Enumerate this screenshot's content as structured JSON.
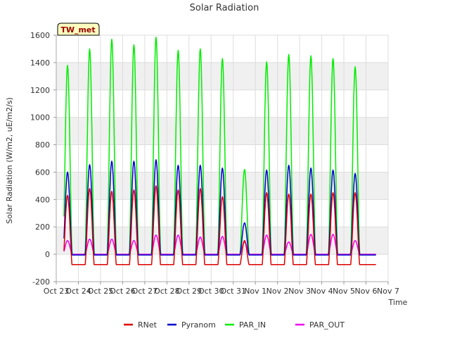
{
  "chart_data": {
    "type": "line",
    "title": "Solar Radiation",
    "xlabel": "Time",
    "ylabel": "Solar Radiation (W/m2, uE/m2/s)",
    "site_label": "TW_met",
    "ylim": [
      -200,
      1600
    ],
    "yticks": [
      -200,
      0,
      200,
      400,
      600,
      800,
      1000,
      1200,
      1400,
      1600
    ],
    "xlim": [
      0,
      15
    ],
    "xticks": [
      "Oct 23",
      "Oct 24",
      "Oct 25",
      "Oct 26",
      "Oct 27",
      "Oct 28",
      "Oct 29",
      "Oct 30",
      "Oct 31",
      "Nov 1",
      "Nov 2",
      "Nov 3",
      "Nov 4",
      "Nov 5",
      "Nov 6",
      "Nov 7"
    ],
    "x_start": 0.35,
    "x_end": 14.45,
    "grid": true,
    "legend_position": "bottom",
    "series": [
      {
        "name": "RNet",
        "color": "#dd0000",
        "night": -75,
        "peaks": [
          430,
          480,
          460,
          470,
          500,
          470,
          480,
          420,
          100,
          450,
          440,
          440,
          450,
          450
        ]
      },
      {
        "name": "Pyranom",
        "color": "#0000cc",
        "night": -5,
        "peaks": [
          600,
          655,
          680,
          680,
          690,
          650,
          650,
          630,
          230,
          615,
          650,
          630,
          615,
          590
        ]
      },
      {
        "name": "PAR_IN",
        "color": "#00ee00",
        "night": 0,
        "peaks": [
          1380,
          1500,
          1570,
          1530,
          1585,
          1490,
          1500,
          1430,
          620,
          1405,
          1460,
          1450,
          1430,
          1370
        ]
      },
      {
        "name": "PAR_OUT",
        "color": "#ee00ee",
        "night": 0,
        "peaks": [
          100,
          110,
          110,
          100,
          140,
          140,
          125,
          130,
          90,
          140,
          90,
          145,
          145,
          100
        ]
      }
    ]
  }
}
